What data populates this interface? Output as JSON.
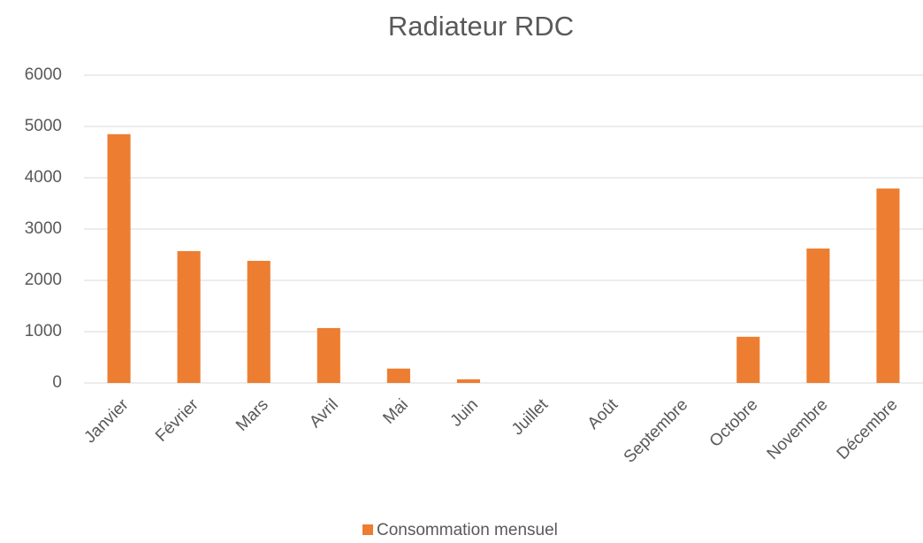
{
  "chart_data": {
    "type": "bar",
    "title": "Radiateur RDC",
    "categories": [
      "Janvier",
      "Février",
      "Mars",
      "Avril",
      "Mai",
      "Juin",
      "Juillet",
      "Août",
      "Septembre",
      "Octobre",
      "Novembre",
      "Décembre"
    ],
    "series": [
      {
        "name": "Consommation mensuel",
        "color": "#ed7d31",
        "values": [
          4850,
          2570,
          2380,
          1070,
          280,
          70,
          0,
          0,
          0,
          900,
          2620,
          3790
        ]
      }
    ],
    "ylim": [
      0,
      6000
    ],
    "yticks": [
      0,
      1000,
      2000,
      3000,
      4000,
      5000,
      6000
    ],
    "grid": true,
    "legend": "bottom"
  }
}
